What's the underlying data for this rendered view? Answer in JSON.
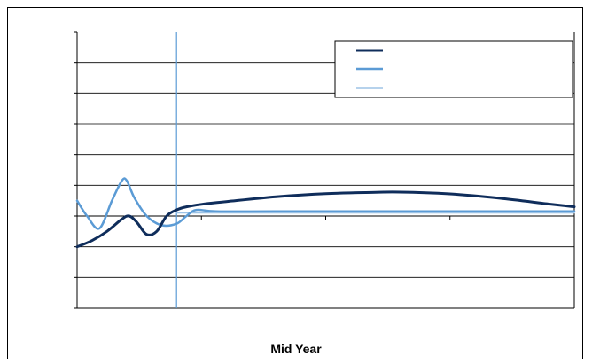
{
  "chart_data": {
    "type": "line",
    "title": "",
    "xlabel": "Mid Year",
    "ylabel": "",
    "xlim": [
      0,
      100
    ],
    "ylim": [
      -3,
      6
    ],
    "y_tick_count": 9,
    "x_gridlines": false,
    "y_gridlines": true,
    "legend": {
      "position": "top-right",
      "labels": [
        "",
        "",
        ""
      ]
    },
    "vertical_marker": {
      "x": 20,
      "color": "#5b9bd5"
    },
    "series": [
      {
        "color": "#0f2d5b",
        "width": 3,
        "points": [
          [
            0,
            -1
          ],
          [
            3,
            -0.8
          ],
          [
            6,
            -0.5
          ],
          [
            9,
            -0.1
          ],
          [
            10.5,
            0
          ],
          [
            12,
            -0.2
          ],
          [
            14,
            -0.6
          ],
          [
            16,
            -0.5
          ],
          [
            18,
            0
          ],
          [
            20,
            0.2
          ],
          [
            22,
            0.3
          ],
          [
            25,
            0.38
          ],
          [
            30,
            0.47
          ],
          [
            40,
            0.63
          ],
          [
            50,
            0.73
          ],
          [
            60,
            0.77
          ],
          [
            65,
            0.78
          ],
          [
            75,
            0.72
          ],
          [
            85,
            0.58
          ],
          [
            95,
            0.39
          ],
          [
            100,
            0.3
          ]
        ]
      },
      {
        "color": "#5b9bd5",
        "width": 2.5,
        "points": [
          [
            0,
            0.5
          ],
          [
            2,
            0
          ],
          [
            4.5,
            -0.4
          ],
          [
            7,
            0.5
          ],
          [
            9,
            1.15
          ],
          [
            10,
            1.15
          ],
          [
            11.5,
            0.6
          ],
          [
            14,
            0
          ],
          [
            17,
            -0.3
          ],
          [
            20,
            -0.25
          ],
          [
            22,
            0
          ],
          [
            24,
            0.2
          ],
          [
            28,
            0.15
          ],
          [
            40,
            0.15
          ],
          [
            60,
            0.15
          ],
          [
            80,
            0.15
          ],
          [
            100,
            0.15
          ]
        ]
      },
      {
        "color": "#9dc3e6",
        "width": 1.5,
        "points": [
          [
            20,
            0.1
          ],
          [
            30,
            0.1
          ],
          [
            50,
            0.1
          ],
          [
            70,
            0.1
          ],
          [
            100,
            0.1
          ]
        ]
      }
    ]
  }
}
